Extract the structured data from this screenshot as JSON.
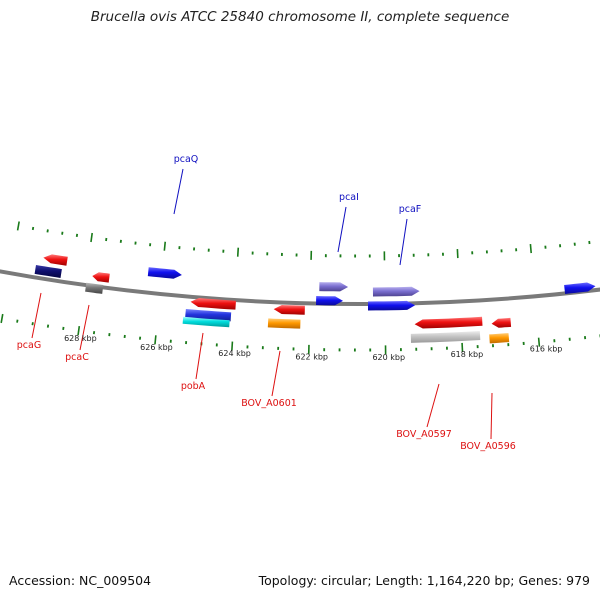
{
  "title": "Brucella ovis ATCC 25840 chromosome II, complete sequence",
  "footer": {
    "accession": "Accession: NC_009504",
    "summary": "Topology: circular; Length: 1,164,220 bp; Genes: 979"
  },
  "colors": {
    "backbone": "#7a7a7a",
    "tick": "#1a7a1a",
    "label_forward": "#1010c0",
    "label_reverse": "#dd1111"
  },
  "ticks": [
    "628 kbp",
    "626 kbp",
    "624 kbp",
    "622 kbp",
    "620 kbp",
    "618 kbp",
    "616 kbp"
  ],
  "features": [
    {
      "label": "pcaQ",
      "strand": "forward",
      "color": "#1111ee"
    },
    {
      "label": "pcaI",
      "strand": "forward",
      "color": "#7b6fd0"
    },
    {
      "label": "pcaF",
      "strand": "forward",
      "color": "#7b6fd0"
    },
    {
      "label": "",
      "strand": "forward",
      "color": "#1111ee"
    },
    {
      "label": "",
      "strand": "forward",
      "color": "#1111ee"
    },
    {
      "label": "",
      "strand": "forward",
      "color": "#1111ee"
    },
    {
      "label": "pcaG",
      "strand": "reverse",
      "color": "#ee1111"
    },
    {
      "label": "",
      "strand": "reverse",
      "color": "#101070"
    },
    {
      "label": "pcaC",
      "strand": "reverse",
      "color": "#ee1111"
    },
    {
      "label": "",
      "strand": "reverse",
      "color": "#777777"
    },
    {
      "label": "pobA",
      "strand": "reverse",
      "color": "#ee1111"
    },
    {
      "label": "",
      "strand": "reverse",
      "color": "#2233dd"
    },
    {
      "label": "",
      "strand": "reverse",
      "color": "#00dddd"
    },
    {
      "label": "BOV_A0601",
      "strand": "reverse",
      "color": "#ee1111"
    },
    {
      "label": "",
      "strand": "reverse",
      "color": "#ff9900"
    },
    {
      "label": "BOV_A0597",
      "strand": "reverse",
      "color": "#ee1111"
    },
    {
      "label": "",
      "strand": "reverse",
      "color": "#bbbbbb"
    },
    {
      "label": "BOV_A0596",
      "strand": "reverse",
      "color": "#ee1111"
    },
    {
      "label": "",
      "strand": "reverse",
      "color": "#ff9900"
    }
  ]
}
